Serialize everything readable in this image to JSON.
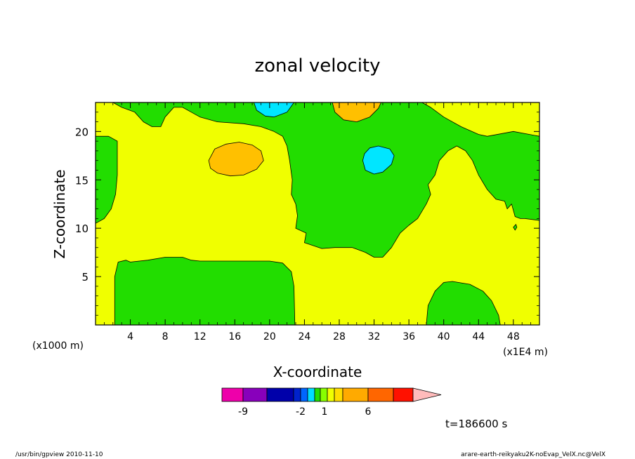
{
  "chart_data": {
    "type": "contour",
    "title": "zonal velocity",
    "xlabel": "X-coordinate",
    "ylabel": "Z-coordinate",
    "x_unit": "(x1E4 m)",
    "y_unit": "(x1000 m)",
    "xlim": [
      0,
      51
    ],
    "ylim": [
      0,
      23
    ],
    "x_ticks": [
      4,
      8,
      12,
      16,
      20,
      24,
      28,
      32,
      36,
      40,
      44,
      48
    ],
    "y_ticks": [
      5,
      10,
      15,
      20
    ],
    "background_color": "#f0ff00",
    "regions": [
      {
        "name": "g1",
        "color": "#22dd00",
        "points": [
          [
            0.0,
            23.0
          ],
          [
            2.0,
            23.0
          ],
          [
            3.0,
            22.5
          ],
          [
            4.5,
            22.0
          ],
          [
            5.5,
            21.0
          ],
          [
            6.5,
            20.5
          ],
          [
            7.5,
            20.5
          ],
          [
            8.0,
            21.5
          ],
          [
            8.5,
            22.0
          ],
          [
            9.0,
            22.5
          ],
          [
            10.0,
            22.5
          ],
          [
            11.0,
            22.0
          ],
          [
            12.0,
            21.5
          ],
          [
            14.0,
            21.0
          ],
          [
            17.0,
            20.8
          ],
          [
            19.0,
            20.5
          ],
          [
            20.5,
            20.0
          ],
          [
            21.5,
            19.5
          ],
          [
            22.0,
            18.5
          ],
          [
            22.3,
            17.0
          ],
          [
            22.6,
            15.0
          ],
          [
            22.5,
            13.5
          ],
          [
            23.0,
            12.5
          ],
          [
            23.2,
            11.3
          ],
          [
            23.0,
            10.0
          ],
          [
            24.2,
            9.5
          ],
          [
            24.0,
            8.5
          ],
          [
            26.0,
            7.9
          ],
          [
            27.5,
            8.0
          ],
          [
            29.5,
            8.0
          ],
          [
            31.0,
            7.5
          ],
          [
            32.0,
            7.0
          ],
          [
            33.0,
            7.0
          ],
          [
            34.0,
            8.0
          ],
          [
            35.0,
            9.5
          ],
          [
            36.0,
            10.3
          ],
          [
            37.0,
            11.0
          ],
          [
            38.0,
            12.5
          ],
          [
            38.5,
            13.5
          ],
          [
            38.2,
            14.5
          ],
          [
            39.0,
            15.5
          ],
          [
            39.5,
            17.0
          ],
          [
            40.5,
            18.0
          ],
          [
            41.5,
            18.5
          ],
          [
            42.5,
            18.0
          ],
          [
            43.3,
            17.0
          ],
          [
            44.0,
            15.5
          ],
          [
            45.0,
            14.0
          ],
          [
            46.0,
            13.0
          ],
          [
            47.0,
            12.8
          ],
          [
            47.3,
            12.0
          ],
          [
            47.8,
            12.5
          ],
          [
            48.2,
            11.2
          ],
          [
            48.8,
            11.0
          ],
          [
            49.3,
            11.0
          ],
          [
            51.0,
            10.8
          ],
          [
            51.0,
            19.5
          ],
          [
            48.0,
            20.0
          ],
          [
            45.0,
            19.5
          ],
          [
            44.0,
            19.7
          ],
          [
            42.0,
            20.5
          ],
          [
            40.0,
            21.5
          ],
          [
            38.5,
            22.5
          ],
          [
            37.5,
            23.0
          ]
        ]
      },
      {
        "name": "g2",
        "color": "#22dd00",
        "points": [
          [
            0.0,
            19.5
          ],
          [
            1.5,
            19.5
          ],
          [
            2.5,
            19.0
          ],
          [
            2.5,
            15.5
          ],
          [
            2.3,
            13.5
          ],
          [
            1.8,
            12.0
          ],
          [
            1.0,
            11.0
          ],
          [
            0.0,
            10.5
          ]
        ]
      },
      {
        "name": "g3",
        "color": "#22dd00",
        "points": [
          [
            2.2,
            0.0
          ],
          [
            2.2,
            5.0
          ],
          [
            2.6,
            6.5
          ],
          [
            3.5,
            6.7
          ],
          [
            4.0,
            6.5
          ],
          [
            6.0,
            6.7
          ],
          [
            8.0,
            7.0
          ],
          [
            10.0,
            7.0
          ],
          [
            11.0,
            6.7
          ],
          [
            12.0,
            6.6
          ],
          [
            14.0,
            6.6
          ],
          [
            17.0,
            6.6
          ],
          [
            20.0,
            6.6
          ],
          [
            21.5,
            6.4
          ],
          [
            22.5,
            5.5
          ],
          [
            22.8,
            4.0
          ],
          [
            22.9,
            0.0
          ]
        ]
      },
      {
        "name": "g4",
        "color": "#22dd00",
        "points": [
          [
            38.0,
            0.0
          ],
          [
            38.2,
            2.0
          ],
          [
            39.0,
            3.5
          ],
          [
            40.0,
            4.4
          ],
          [
            41.0,
            4.5
          ],
          [
            43.0,
            4.2
          ],
          [
            44.5,
            3.5
          ],
          [
            45.5,
            2.5
          ],
          [
            46.3,
            1.0
          ],
          [
            46.5,
            0.0
          ]
        ]
      },
      {
        "name": "g5",
        "color": "#22dd00",
        "points": [
          [
            48.0,
            10.1
          ],
          [
            48.3,
            10.4
          ],
          [
            48.4,
            10.1
          ],
          [
            48.2,
            9.8
          ]
        ]
      },
      {
        "name": "o1",
        "color": "#ffc000",
        "points": [
          [
            27.2,
            23.0
          ],
          [
            27.5,
            22.0
          ],
          [
            28.5,
            21.2
          ],
          [
            30.0,
            21.0
          ],
          [
            31.5,
            21.5
          ],
          [
            32.5,
            22.4
          ],
          [
            32.8,
            23.0
          ]
        ]
      },
      {
        "name": "c1",
        "color": "#00e6ff",
        "points": [
          [
            18.2,
            23.0
          ],
          [
            18.5,
            22.2
          ],
          [
            19.5,
            21.6
          ],
          [
            20.5,
            21.5
          ],
          [
            22.0,
            22.0
          ],
          [
            22.8,
            23.0
          ]
        ]
      },
      {
        "name": "c2",
        "color": "#00e6ff",
        "points": [
          [
            30.7,
            17.0
          ],
          [
            31.0,
            16.0
          ],
          [
            32.0,
            15.6
          ],
          [
            33.0,
            15.8
          ],
          [
            34.0,
            16.6
          ],
          [
            34.3,
            17.5
          ],
          [
            33.8,
            18.2
          ],
          [
            32.5,
            18.5
          ],
          [
            31.5,
            18.3
          ],
          [
            30.9,
            17.7
          ]
        ]
      },
      {
        "name": "o2",
        "color": "#ffc000",
        "points": [
          [
            13.0,
            17.0
          ],
          [
            13.2,
            16.2
          ],
          [
            14.0,
            15.7
          ],
          [
            15.5,
            15.4
          ],
          [
            17.0,
            15.5
          ],
          [
            18.5,
            16.1
          ],
          [
            19.3,
            17.0
          ],
          [
            19.0,
            18.0
          ],
          [
            18.0,
            18.6
          ],
          [
            16.5,
            18.9
          ],
          [
            15.0,
            18.7
          ],
          [
            13.7,
            18.2
          ]
        ]
      }
    ],
    "colorbar": {
      "colors": [
        "#ee00aa",
        "#8800bb",
        "#0000aa",
        "#0022cc",
        "#0066ff",
        "#00ddff",
        "#22dd00",
        "#88ff00",
        "#f0ff00",
        "#ffdd00",
        "#ffaa00",
        "#ff6600",
        "#ff1100",
        "#ff7777",
        "#ffbbbb"
      ],
      "labels": [
        "-9",
        "-2",
        "1",
        "6"
      ]
    },
    "time_label": "t=186600 s",
    "footer_left": "/usr/bin/gpview   2010-11-10",
    "footer_right": "arare-earth-reikyaku2K-noEvap_VelX.nc@VelX"
  }
}
